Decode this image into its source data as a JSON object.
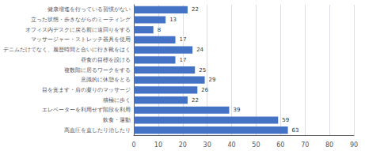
{
  "chart_data": {
    "type": "bar",
    "orientation": "horizontal",
    "categories": [
      "健康増進を行っている習慣がない",
      "立った状態・歩きながらのミーティング",
      "オフィス内デスクに戻る前に遠回りをする",
      "マッサージャー・ストレッチ器具を使用",
      "デニムだけでなく、履歴時間と合いに行き靴をはく",
      "昼食の目標を設ける",
      "複数階に居るワークをする",
      "意識的に休憩をとる",
      "目を覚ます・肩の凝りのマッサージ",
      "積極に歩く",
      "エレベーターを利用せず階段を利用",
      "飲食・運動",
      "高血圧を直したり治したり"
    ],
    "values": [
      22,
      13,
      8,
      17,
      24,
      17,
      25,
      29,
      26,
      22,
      39,
      59,
      63
    ],
    "color": "#4472c4",
    "xlim": [
      0,
      90
    ],
    "xticks": [
      0,
      10,
      20,
      30,
      40,
      50,
      60,
      70,
      80,
      90
    ],
    "grid": true,
    "data_labels": true
  }
}
